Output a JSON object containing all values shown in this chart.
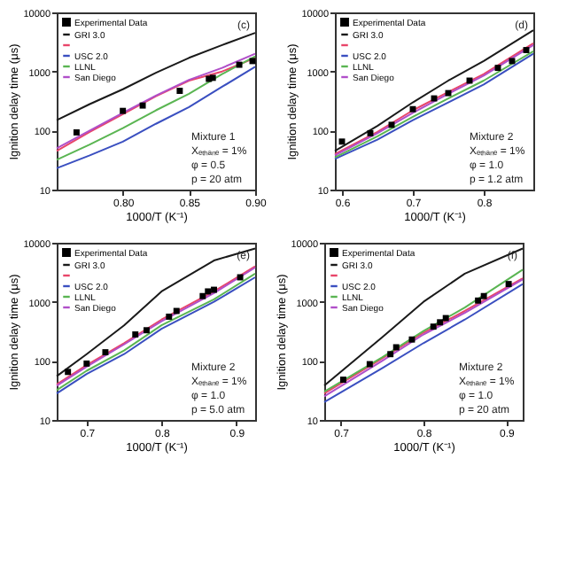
{
  "chart_data": [
    {
      "type": "line",
      "xlabel": "1000/T (K⁻¹)",
      "ylabel": "Ignition delay time (μs)",
      "log": "y",
      "legend": "top left",
      "xlim": [
        0.75,
        0.9
      ],
      "xticks": [
        {
          "value": 0.8,
          "label": "0.80"
        },
        {
          "value": 0.85,
          "label": "0.85"
        },
        {
          "value": 0.9,
          "label": "0.90"
        }
      ],
      "ylim": [
        10,
        10000
      ],
      "yticks": [
        10,
        100,
        1000,
        10000
      ],
      "annotations": [
        "(c)",
        "Mixture 1",
        "Xₑₜₕₐₙₑ = 1%",
        "φ = 0.5",
        "p = 20 atm"
      ],
      "series": [
        {
          "name": "Experimental Data",
          "type": "scatter",
          "marker": "square",
          "color": "#000000",
          "x": [
            0.765,
            0.8,
            0.815,
            0.843,
            0.865,
            0.868,
            0.888,
            0.898
          ],
          "values": [
            93,
            215,
            265,
            470,
            750,
            780,
            1300,
            1500
          ]
        },
        {
          "name": "GRI 3.0",
          "type": "line",
          "color": "#1a1a1a",
          "x": [
            0.75,
            0.775,
            0.8,
            0.825,
            0.85,
            0.875,
            0.9
          ],
          "values": [
            150,
            280,
            500,
            950,
            1700,
            2800,
            4500
          ]
        },
        {
          "name": null,
          "type": "line",
          "color": "#e8456a",
          "x": [
            0.75,
            0.775,
            0.8,
            0.825,
            0.85,
            0.875,
            0.9
          ],
          "values": [
            45,
            95,
            190,
            380,
            700,
            1000,
            1700
          ]
        },
        {
          "name": "USC 2.0",
          "type": "line",
          "color": "#3a4fc0",
          "x": [
            0.75,
            0.775,
            0.8,
            0.825,
            0.85,
            0.875,
            0.9
          ],
          "values": [
            23,
            38,
            65,
            130,
            250,
            550,
            1200
          ]
        },
        {
          "name": "LLNL",
          "type": "line",
          "color": "#5ab552",
          "x": [
            0.75,
            0.775,
            0.8,
            0.825,
            0.85,
            0.875,
            0.9
          ],
          "values": [
            32,
            58,
            110,
            220,
            420,
            900,
            1800
          ]
        },
        {
          "name": "San Diego",
          "type": "line",
          "color": "#b04fc9",
          "x": [
            0.75,
            0.775,
            0.8,
            0.825,
            0.85,
            0.875,
            0.9
          ],
          "values": [
            50,
            100,
            200,
            390,
            720,
            1150,
            2000
          ]
        }
      ]
    },
    {
      "type": "line",
      "xlabel": "1000/T (K⁻¹)",
      "ylabel": "Ignition delay time (μs)",
      "log": "y",
      "legend": "top left",
      "xlim": [
        0.59,
        0.87
      ],
      "xticks": [
        0.6,
        0.7,
        0.8
      ],
      "ylim": [
        10,
        10000
      ],
      "yticks": [
        10,
        100,
        1000,
        10000
      ],
      "annotations": [
        "(d)",
        "Mixture 2",
        "Xₑₜₕₐₙₑ = 1%",
        "φ = 1.0",
        "p = 1.2 atm"
      ],
      "series": [
        {
          "name": "Experimental Data",
          "type": "scatter",
          "marker": "square",
          "color": "#000000",
          "x": [
            0.6,
            0.64,
            0.67,
            0.7,
            0.73,
            0.75,
            0.78,
            0.82,
            0.84,
            0.86
          ],
          "values": [
            65,
            90,
            125,
            230,
            350,
            430,
            700,
            1150,
            1500,
            2300
          ]
        },
        {
          "name": "GRI 3.0",
          "type": "line",
          "color": "#1a1a1a",
          "x": [
            0.59,
            0.65,
            0.7,
            0.75,
            0.8,
            0.87
          ],
          "values": [
            45,
            120,
            300,
            700,
            1500,
            5000
          ]
        },
        {
          "name": null,
          "type": "line",
          "color": "#e8456a",
          "x": [
            0.59,
            0.65,
            0.7,
            0.75,
            0.8,
            0.87
          ],
          "values": [
            40,
            95,
            220,
            450,
            900,
            3000
          ]
        },
        {
          "name": "USC 2.0",
          "type": "line",
          "color": "#3a4fc0",
          "x": [
            0.59,
            0.65,
            0.7,
            0.75,
            0.8,
            0.87
          ],
          "values": [
            33,
            70,
            150,
            300,
            600,
            2000
          ]
        },
        {
          "name": "LLNL",
          "type": "line",
          "color": "#5ab552",
          "x": [
            0.59,
            0.65,
            0.7,
            0.75,
            0.8,
            0.87
          ],
          "values": [
            35,
            80,
            170,
            350,
            700,
            2200
          ]
        },
        {
          "name": "San Diego",
          "type": "line",
          "color": "#b04fc9",
          "x": [
            0.59,
            0.65,
            0.7,
            0.75,
            0.8,
            0.87
          ],
          "values": [
            38,
            90,
            200,
            420,
            850,
            2800
          ]
        }
      ]
    },
    {
      "type": "line",
      "xlabel": "1000/T (K⁻¹)",
      "ylabel": "Ignition delay time (μs)",
      "log": "y",
      "legend": "top left",
      "xlim": [
        0.66,
        0.925
      ],
      "xticks": [
        0.7,
        0.8,
        0.9
      ],
      "ylim": [
        10,
        10000
      ],
      "yticks": [
        10,
        100,
        1000,
        10000
      ],
      "annotations": [
        "(e)",
        "Mixture 2",
        "Xₑₜₕₐₙₑ = 1%",
        "φ = 1.0",
        "p = 5.0 atm"
      ],
      "series": [
        {
          "name": "Experimental Data",
          "type": "scatter",
          "marker": "square",
          "color": "#000000",
          "x": [
            0.675,
            0.7,
            0.725,
            0.765,
            0.78,
            0.81,
            0.82,
            0.855,
            0.862,
            0.87,
            0.905
          ],
          "values": [
            65,
            90,
            140,
            280,
            330,
            560,
            700,
            1250,
            1500,
            1600,
            2600
          ]
        },
        {
          "name": "GRI 3.0",
          "type": "line",
          "color": "#1a1a1a",
          "x": [
            0.66,
            0.7,
            0.75,
            0.8,
            0.87,
            0.925
          ],
          "values": [
            55,
            130,
            400,
            1500,
            5000,
            8000
          ]
        },
        {
          "name": null,
          "type": "line",
          "color": "#e8456a",
          "x": [
            0.66,
            0.7,
            0.75,
            0.8,
            0.87,
            0.925
          ],
          "values": [
            40,
            85,
            200,
            500,
            1500,
            4000
          ]
        },
        {
          "name": "USC 2.0",
          "type": "line",
          "color": "#3a4fc0",
          "x": [
            0.66,
            0.7,
            0.75,
            0.8,
            0.87,
            0.925
          ],
          "values": [
            28,
            60,
            130,
            350,
            1000,
            2600
          ]
        },
        {
          "name": "LLNL",
          "type": "line",
          "color": "#5ab552",
          "x": [
            0.66,
            0.7,
            0.75,
            0.8,
            0.87,
            0.925
          ],
          "values": [
            32,
            68,
            150,
            400,
            1100,
            3000
          ]
        },
        {
          "name": "San Diego",
          "type": "line",
          "color": "#b04fc9",
          "x": [
            0.66,
            0.7,
            0.75,
            0.8,
            0.87,
            0.925
          ],
          "values": [
            38,
            80,
            190,
            470,
            1400,
            3800
          ]
        }
      ]
    },
    {
      "type": "line",
      "xlabel": "1000/T (K⁻¹)",
      "ylabel": "Ignition delay time (μs)",
      "log": "y",
      "legend": "top left",
      "xlim": [
        0.68,
        0.92
      ],
      "xticks": [
        0.7,
        0.8,
        0.9
      ],
      "ylim": [
        10,
        10000
      ],
      "yticks": [
        10,
        100,
        1000,
        10000
      ],
      "annotations": [
        "(f)",
        "Mixture 2",
        "Xₑₜₕₐₙₑ = 1%",
        "φ = 1.0",
        "p = 20 atm"
      ],
      "series": [
        {
          "name": "Experimental Data",
          "type": "scatter",
          "marker": "square",
          "color": "#000000",
          "x": [
            0.703,
            0.735,
            0.76,
            0.767,
            0.786,
            0.812,
            0.82,
            0.827,
            0.866,
            0.873,
            0.903
          ],
          "values": [
            48,
            88,
            130,
            170,
            230,
            380,
            450,
            530,
            1050,
            1250,
            2000
          ]
        },
        {
          "name": "GRI 3.0",
          "type": "line",
          "color": "#1a1a1a",
          "x": [
            0.68,
            0.75,
            0.8,
            0.85,
            0.92
          ],
          "values": [
            38,
            250,
            1000,
            3000,
            8000
          ]
        },
        {
          "name": null,
          "type": "line",
          "color": "#e8456a",
          "x": [
            0.68,
            0.75,
            0.8,
            0.85,
            0.92
          ],
          "values": [
            28,
            110,
            300,
            700,
            2500
          ]
        },
        {
          "name": "USC 2.0",
          "type": "line",
          "color": "#3a4fc0",
          "x": [
            0.68,
            0.75,
            0.8,
            0.85,
            0.92
          ],
          "values": [
            20,
            75,
            200,
            500,
            2000
          ]
        },
        {
          "name": "LLNL",
          "type": "line",
          "color": "#5ab552",
          "x": [
            0.68,
            0.75,
            0.8,
            0.85,
            0.92
          ],
          "values": [
            30,
            115,
            320,
            800,
            3500
          ]
        },
        {
          "name": "San Diego",
          "type": "line",
          "color": "#b04fc9",
          "x": [
            0.68,
            0.75,
            0.8,
            0.85,
            0.92
          ],
          "values": [
            25,
            100,
            280,
            650,
            2400
          ]
        }
      ]
    }
  ]
}
